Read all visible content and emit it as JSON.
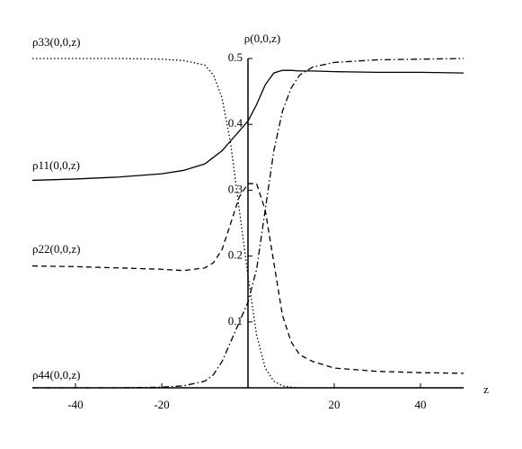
{
  "chart_data": {
    "type": "line",
    "y_label": "ρ(0,0,z)",
    "x_label": "z",
    "x": [
      -50,
      -40,
      -30,
      -20,
      -15,
      -10,
      -8,
      -6,
      -4,
      -2,
      0,
      2,
      4,
      6,
      8,
      10,
      12,
      15,
      20,
      30,
      40,
      50
    ],
    "series": [
      {
        "name": "ρ33(0,0,z)",
        "color": "#000",
        "dash": "dotted",
        "values": [
          0.5,
          0.5,
          0.5,
          0.499,
          0.497,
          0.49,
          0.475,
          0.44,
          0.37,
          0.27,
          0.17,
          0.08,
          0.03,
          0.01,
          0.003,
          0.001,
          0,
          0,
          0,
          0,
          0,
          0
        ]
      },
      {
        "name": "ρ11(0,0,z)",
        "color": "#000",
        "dash": "solid",
        "values": [
          0.315,
          0.317,
          0.32,
          0.325,
          0.33,
          0.34,
          0.35,
          0.36,
          0.375,
          0.39,
          0.405,
          0.43,
          0.46,
          0.478,
          0.482,
          0.482,
          0.481,
          0.481,
          0.48,
          0.479,
          0.479,
          0.478
        ]
      },
      {
        "name": "ρ22(0,0,z)",
        "color": "#000",
        "dash": "dashed",
        "values": [
          0.185,
          0.184,
          0.182,
          0.18,
          0.178,
          0.182,
          0.19,
          0.21,
          0.25,
          0.29,
          0.31,
          0.31,
          0.27,
          0.19,
          0.11,
          0.07,
          0.05,
          0.04,
          0.03,
          0.025,
          0.023,
          0.022
        ]
      },
      {
        "name": "ρ44(0,0,z)",
        "color": "#000",
        "dash": "dashdot",
        "values": [
          0,
          0,
          0,
          0.001,
          0.003,
          0.01,
          0.02,
          0.04,
          0.07,
          0.1,
          0.13,
          0.18,
          0.27,
          0.36,
          0.42,
          0.455,
          0.475,
          0.487,
          0.494,
          0.498,
          0.499,
          0.5
        ]
      }
    ],
    "xlim": [
      -50,
      50
    ],
    "ylim": [
      0,
      0.5
    ],
    "xticks": [
      -40,
      -20,
      20,
      40
    ],
    "yticks": [
      0.1,
      0.2,
      0.3,
      0.4,
      0.5
    ],
    "grid": false
  }
}
